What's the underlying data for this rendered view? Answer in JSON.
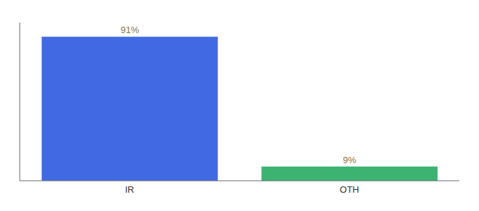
{
  "chart_data": {
    "type": "bar",
    "categories": [
      "IR",
      "OTH"
    ],
    "values": [
      91,
      9
    ],
    "value_labels": [
      "91%",
      "9%"
    ],
    "colors": [
      "#4169E1",
      "#3CB371"
    ],
    "ylim": [
      0,
      100
    ],
    "data_labels": true,
    "tick_labels": "x",
    "grid": false
  }
}
